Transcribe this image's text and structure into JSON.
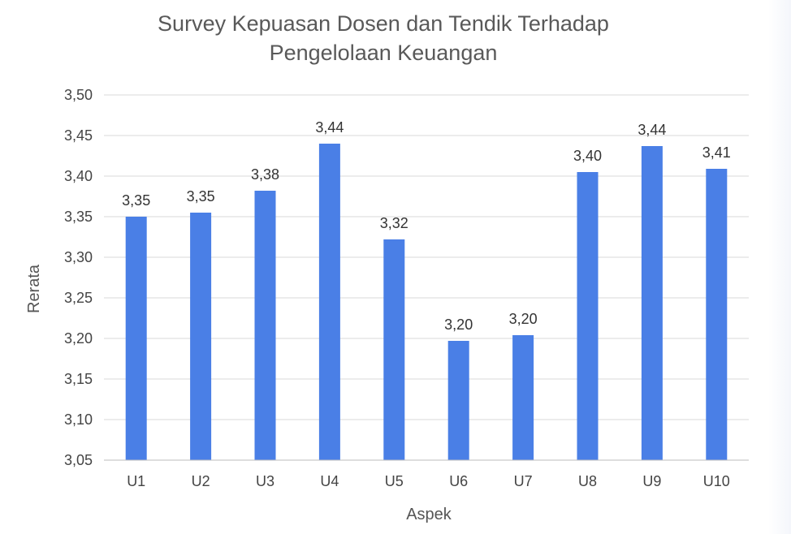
{
  "chart_data": {
    "type": "bar",
    "title": [
      "Survey Kepuasan Dosen dan Tendik Terhadap",
      "Pengelolaan Keuangan"
    ],
    "xlabel": "Aspek",
    "ylabel": "Rerata",
    "categories": [
      "U1",
      "U2",
      "U3",
      "U4",
      "U5",
      "U6",
      "U7",
      "U8",
      "U9",
      "U10"
    ],
    "values": [
      3.35,
      3.355,
      3.382,
      3.44,
      3.322,
      3.197,
      3.204,
      3.405,
      3.437,
      3.409
    ],
    "data_labels": [
      "3,35",
      "3,35",
      "3,38",
      "3,44",
      "3,32",
      "3,20",
      "3,20",
      "3,40",
      "3,44",
      "3,41"
    ],
    "yticks": [
      3.05,
      3.1,
      3.15,
      3.2,
      3.25,
      3.3,
      3.35,
      3.4,
      3.45,
      3.5
    ],
    "ytick_labels": [
      "3,05",
      "3,10",
      "3,15",
      "3,20",
      "3,25",
      "3,30",
      "3,35",
      "3,40",
      "3,45",
      "3,50"
    ],
    "ylim": [
      3.05,
      3.5
    ],
    "grid": true,
    "legend": "none",
    "bar_color": "#4a7fe6",
    "grid_color": "#d9d9d9"
  }
}
